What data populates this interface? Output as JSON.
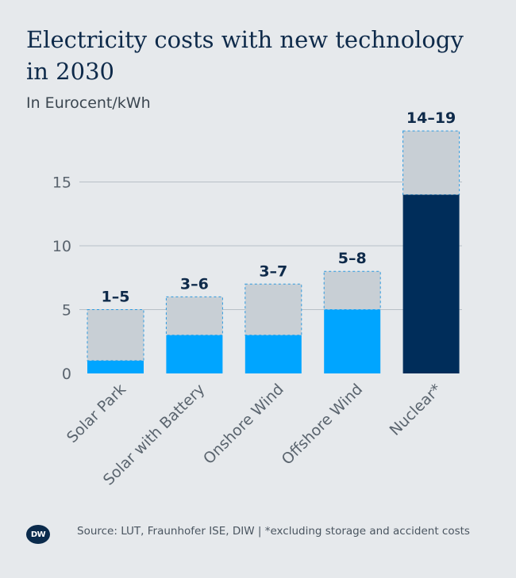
{
  "header": {
    "title": "Electricity costs with new technology in 2030",
    "subtitle": "In Eurocent/kWh"
  },
  "footer": {
    "logo_text": "DW",
    "source": "Source: LUT, Fraunhofer ISE, DIW | *excluding storage and accident costs"
  },
  "colors": {
    "range": "#c8cfd5",
    "light_blue": "#00a5ff",
    "dark_blue": "#002d5a",
    "gridline": "#b8c0c7",
    "axis_text": "#5a646e",
    "label_text": "#0e2a4a"
  },
  "chart_data": {
    "type": "bar",
    "categories": [
      "Solar Park",
      "Solar with Battery",
      "Onshore Wind",
      "Offshore Wind",
      "Nuclear*"
    ],
    "series": [
      {
        "values": [
          1,
          3,
          3,
          5,
          14
        ]
      },
      {
        "values": [
          4,
          3,
          4,
          3,
          5
        ]
      }
    ],
    "data_labels": [
      "1–5",
      "3–6",
      "3–7",
      "5–8",
      "14–19"
    ],
    "bar_colors": [
      "#00a5ff",
      "#00a5ff",
      "#00a5ff",
      "#00a5ff",
      "#002d5a"
    ],
    "yticks": [
      0,
      5,
      10,
      15
    ],
    "ylim": [
      0,
      19
    ],
    "grid": true,
    "stacked": true
  }
}
